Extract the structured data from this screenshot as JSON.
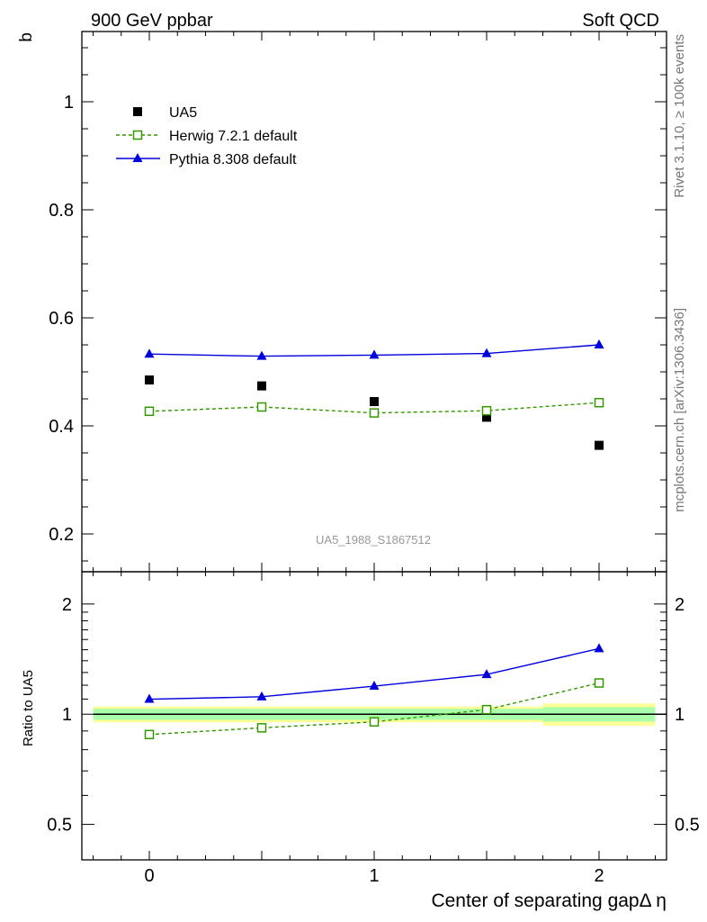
{
  "header": {
    "left": "900 GeV ppbar",
    "right": "Soft QCD"
  },
  "side_text": {
    "top": "Rivet 3.1.10, ≥ 100k events",
    "bottom": "mcplots.cern.ch [arXiv:1306.3436]"
  },
  "watermark": "UA5_1988_S1867512",
  "colors": {
    "data": "#000000",
    "herwig": "#339900",
    "pythia": "#0000dd",
    "band_inner": "#aaffaa",
    "band_outer": "#ffff99"
  },
  "chart_data": [
    {
      "type": "scatter",
      "ylabel": "b",
      "ylim": [
        0.13,
        1.13
      ],
      "xlim": [
        -0.3,
        2.3
      ],
      "y_ticks": [
        "0.2",
        "0.4",
        "0.6",
        "0.8",
        "1"
      ],
      "legend_position": "top-left",
      "series": [
        {
          "name": "UA5",
          "style": "markers",
          "marker": "filled-square",
          "color": "#000000",
          "x": [
            0,
            0.5,
            1,
            1.5,
            2
          ],
          "y": [
            0.485,
            0.474,
            0.445,
            0.416,
            0.364
          ]
        },
        {
          "name": "Herwig 7.2.1 default",
          "style": "dashed-line",
          "marker": "open-square",
          "color": "#339900",
          "x": [
            0,
            0.5,
            1,
            1.5,
            2
          ],
          "y": [
            0.427,
            0.435,
            0.424,
            0.428,
            0.443
          ]
        },
        {
          "name": "Pythia 8.308 default",
          "style": "solid-line",
          "marker": "filled-triangle",
          "color": "#0000dd",
          "x": [
            0,
            0.5,
            1,
            1.5,
            2
          ],
          "y": [
            0.533,
            0.529,
            0.531,
            0.534,
            0.55
          ]
        }
      ]
    },
    {
      "type": "line",
      "ylabel": "Ratio to UA5",
      "xlabel": "Center of separating gapΔ η",
      "log_y": true,
      "ylim": [
        0.4,
        2.45
      ],
      "xlim": [
        -0.3,
        2.3
      ],
      "x_ticks": [
        "0",
        "1",
        "2"
      ],
      "y_ticks": [
        "0.5",
        "1",
        "2"
      ],
      "reference": 1,
      "bands": [
        {
          "x": [
            -0.25,
            0.25
          ],
          "inner": [
            0.965,
            1.035
          ],
          "outer": [
            0.95,
            1.05
          ]
        },
        {
          "x": [
            0.25,
            0.75
          ],
          "inner": [
            0.965,
            1.035
          ],
          "outer": [
            0.95,
            1.05
          ]
        },
        {
          "x": [
            0.75,
            1.25
          ],
          "inner": [
            0.965,
            1.035
          ],
          "outer": [
            0.95,
            1.05
          ]
        },
        {
          "x": [
            1.25,
            1.75
          ],
          "inner": [
            0.965,
            1.035
          ],
          "outer": [
            0.95,
            1.05
          ]
        },
        {
          "x": [
            1.75,
            2.25
          ],
          "inner": [
            0.955,
            1.045
          ],
          "outer": [
            0.93,
            1.07
          ]
        }
      ],
      "series": [
        {
          "name": "Herwig 7.2.1 default",
          "style": "dashed-line",
          "marker": "open-square",
          "color": "#339900",
          "x": [
            0,
            0.5,
            1,
            1.5,
            2
          ],
          "y": [
            0.88,
            0.918,
            0.953,
            1.029,
            1.217
          ]
        },
        {
          "name": "Pythia 8.308 default",
          "style": "solid-line",
          "marker": "filled-triangle",
          "color": "#0000dd",
          "x": [
            0,
            0.5,
            1,
            1.5,
            2
          ],
          "y": [
            1.099,
            1.116,
            1.193,
            1.284,
            1.511
          ]
        }
      ]
    }
  ]
}
